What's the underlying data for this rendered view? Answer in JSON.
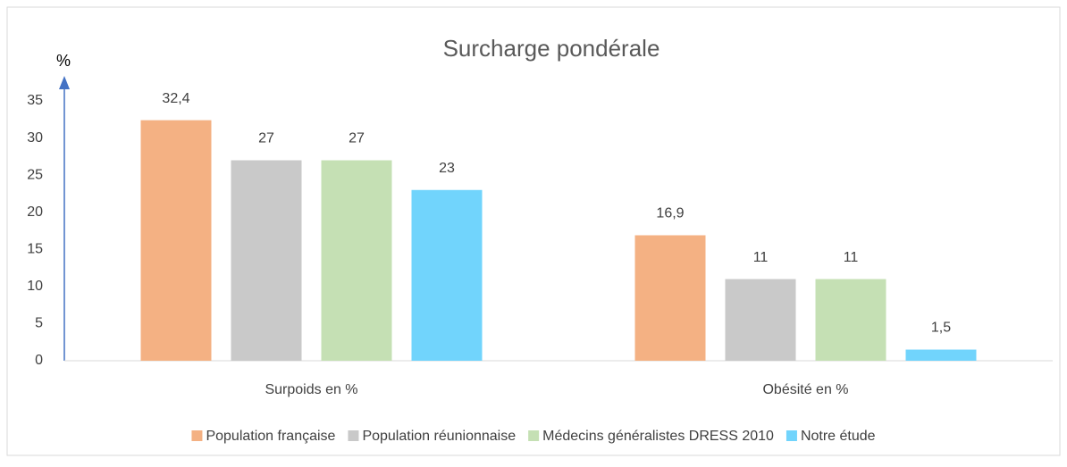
{
  "chart_data": {
    "type": "bar",
    "title": "Surcharge pondérale",
    "y_label": "%",
    "categories": [
      "Surpoids en %",
      "Obésité en %"
    ],
    "series": [
      {
        "name": "Population française",
        "color": "#f4b183",
        "values": [
          32.4,
          16.9
        ],
        "value_labels": [
          "32,4",
          "16,9"
        ]
      },
      {
        "name": "Population réunionnaise",
        "color": "#c9c9c9",
        "values": [
          27,
          11
        ]
      },
      {
        "name": "Médecins généralistes DRESS 2010",
        "color": "#c5e0b4",
        "values": [
          27,
          11
        ]
      },
      {
        "name": "Notre étude",
        "color": "#71d4fc",
        "values": [
          23,
          1.5
        ],
        "value_labels": [
          "23",
          "1,5"
        ]
      }
    ],
    "ylim": [
      0,
      35
    ],
    "yticks": [
      0,
      5,
      10,
      15,
      20,
      25,
      30,
      35
    ],
    "grid": false,
    "legend": "bottom"
  }
}
